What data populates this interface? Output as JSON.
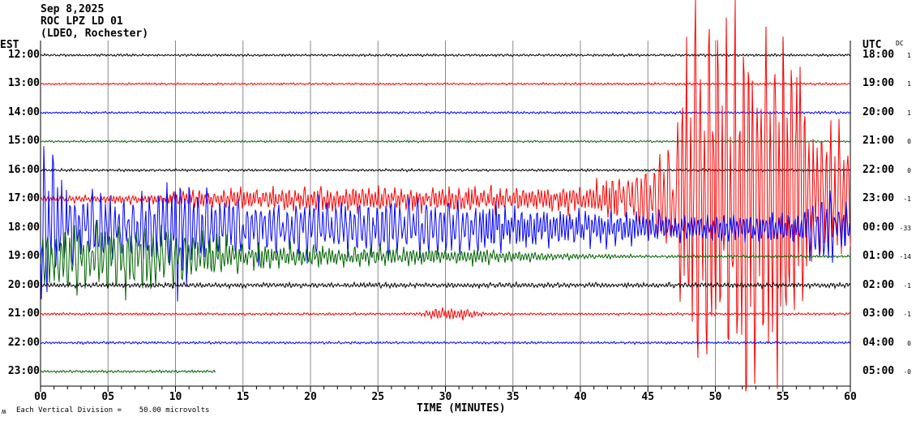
{
  "header": {
    "date": "Sep 8,2025",
    "station": "ROC LPZ LD 01",
    "network": "(LDEO, Rochester)",
    "left_zone": "EST",
    "right_zone": "UTC",
    "dc_label": "DC"
  },
  "footer": {
    "x_axis_label": "TIME (MINUTES)",
    "scale_note": "Each Vertical Division =    50.00 microvolts",
    "logo_mark": "ʍ"
  },
  "chart_data": {
    "type": "line",
    "title": "ROC LPZ LD 01 helicorder",
    "xlabel": "TIME (MINUTES)",
    "xlim": [
      0,
      60
    ],
    "x_ticks": [
      "00",
      "05",
      "10",
      "15",
      "20",
      "25",
      "30",
      "35",
      "40",
      "45",
      "50",
      "55",
      "60"
    ],
    "grid": true,
    "units_per_division_microvolts": 50.0,
    "rows": [
      {
        "est": "12:00",
        "utc": "18:00",
        "dc": "1",
        "color": "#000000",
        "end": 60,
        "envelope": [
          [
            0,
            0.05
          ],
          [
            60,
            0.05
          ]
        ]
      },
      {
        "est": "13:00",
        "utc": "19:00",
        "dc": "1",
        "color": "#ff0000",
        "end": 60,
        "envelope": [
          [
            0,
            0.04
          ],
          [
            60,
            0.05
          ]
        ]
      },
      {
        "est": "14:00",
        "utc": "20:00",
        "dc": "1",
        "color": "#0000ff",
        "end": 60,
        "envelope": [
          [
            0,
            0.04
          ],
          [
            60,
            0.05
          ]
        ]
      },
      {
        "est": "15:00",
        "utc": "21:00",
        "dc": "0",
        "color": "#006400",
        "end": 60,
        "envelope": [
          [
            0,
            0.04
          ],
          [
            60,
            0.04
          ]
        ]
      },
      {
        "est": "16:00",
        "utc": "22:00",
        "dc": "0",
        "color": "#000000",
        "end": 60,
        "envelope": [
          [
            0,
            0.05
          ],
          [
            60,
            0.05
          ]
        ]
      },
      {
        "est": "17:00",
        "utc": "23:00",
        "dc": "-1",
        "color": "#ff0000",
        "end": 60,
        "envelope": [
          [
            0,
            0.1
          ],
          [
            8,
            0.2
          ],
          [
            12,
            0.4
          ],
          [
            20,
            0.5
          ],
          [
            30,
            0.5
          ],
          [
            40,
            0.5
          ],
          [
            44,
            1.2
          ],
          [
            47,
            2.5
          ],
          [
            48,
            8
          ],
          [
            56,
            8
          ],
          [
            57,
            3
          ],
          [
            60,
            3
          ]
        ]
      },
      {
        "est": "18:00",
        "utc": "00:00",
        "dc": "-33",
        "color": "#0000ff",
        "end": 60,
        "envelope": [
          [
            0,
            3.2
          ],
          [
            1.5,
            2
          ],
          [
            3,
            1.2
          ],
          [
            9,
            1.5
          ],
          [
            10.5,
            3
          ],
          [
            12,
            1.5
          ],
          [
            15,
            1.2
          ],
          [
            30,
            1.1
          ],
          [
            35,
            0.9
          ],
          [
            42,
            0.7
          ],
          [
            48,
            0.6
          ],
          [
            56,
            0.6
          ],
          [
            58,
            1.6
          ],
          [
            60,
            0.8
          ]
        ]
      },
      {
        "est": "19:00",
        "utc": "01:00",
        "dc": "-14",
        "color": "#006400",
        "end": 60,
        "envelope": [
          [
            0,
            1.2
          ],
          [
            6,
            1.4
          ],
          [
            12,
            1
          ],
          [
            15,
            0.5
          ],
          [
            25,
            0.4
          ],
          [
            33,
            0.3
          ],
          [
            40,
            0.1
          ],
          [
            45,
            0.06
          ],
          [
            60,
            0.05
          ]
        ]
      },
      {
        "est": "20:00",
        "utc": "02:00",
        "dc": "-1",
        "color": "#000000",
        "end": 60,
        "envelope": [
          [
            0,
            0.1
          ],
          [
            60,
            0.1
          ]
        ]
      },
      {
        "est": "21:00",
        "utc": "03:00",
        "dc": "-1",
        "color": "#ff0000",
        "end": 60,
        "envelope": [
          [
            0,
            0.05
          ],
          [
            28,
            0.05
          ],
          [
            29.5,
            0.3
          ],
          [
            32,
            0.2
          ],
          [
            33,
            0.05
          ],
          [
            60,
            0.05
          ]
        ]
      },
      {
        "est": "22:00",
        "utc": "04:00",
        "dc": "0",
        "color": "#0000ff",
        "end": 60,
        "envelope": [
          [
            0,
            0.05
          ],
          [
            60,
            0.05
          ]
        ]
      },
      {
        "est": "23:00",
        "utc": "05:00",
        "dc": "-0",
        "color": "#006400",
        "end": 13,
        "envelope": [
          [
            0,
            0.05
          ],
          [
            13,
            0.05
          ]
        ]
      }
    ]
  }
}
